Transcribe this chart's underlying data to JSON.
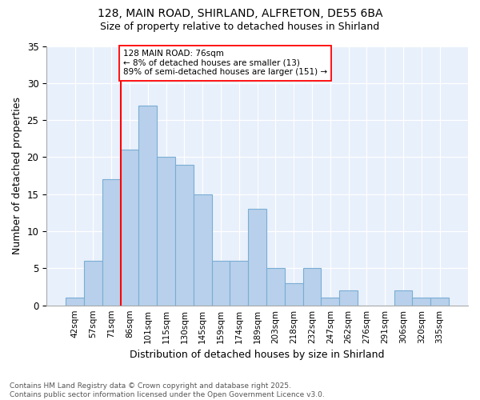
{
  "title1": "128, MAIN ROAD, SHIRLAND, ALFRETON, DE55 6BA",
  "title2": "Size of property relative to detached houses in Shirland",
  "xlabel": "Distribution of detached houses by size in Shirland",
  "ylabel": "Number of detached properties",
  "bar_labels": [
    "42sqm",
    "57sqm",
    "71sqm",
    "86sqm",
    "101sqm",
    "115sqm",
    "130sqm",
    "145sqm",
    "159sqm",
    "174sqm",
    "189sqm",
    "203sqm",
    "218sqm",
    "232sqm",
    "247sqm",
    "262sqm",
    "276sqm",
    "291sqm",
    "306sqm",
    "320sqm",
    "335sqm"
  ],
  "bar_values": [
    1,
    6,
    17,
    21,
    27,
    20,
    19,
    15,
    6,
    6,
    13,
    5,
    3,
    5,
    1,
    2,
    0,
    0,
    2,
    1,
    1
  ],
  "bar_color": "#b8d0eb",
  "bar_edge_color": "#7aadd4",
  "red_line_index": 2,
  "annotation_line1": "128 MAIN ROAD: 76sqm",
  "annotation_line2": "← 8% of detached houses are smaller (13)",
  "annotation_line3": "89% of semi-detached houses are larger (151) →",
  "ylim": [
    0,
    35
  ],
  "yticks": [
    0,
    5,
    10,
    15,
    20,
    25,
    30,
    35
  ],
  "bg_color": "#e8f0fb",
  "grid_color": "#ffffff",
  "footer1": "Contains HM Land Registry data © Crown copyright and database right 2025.",
  "footer2": "Contains public sector information licensed under the Open Government Licence v3.0."
}
